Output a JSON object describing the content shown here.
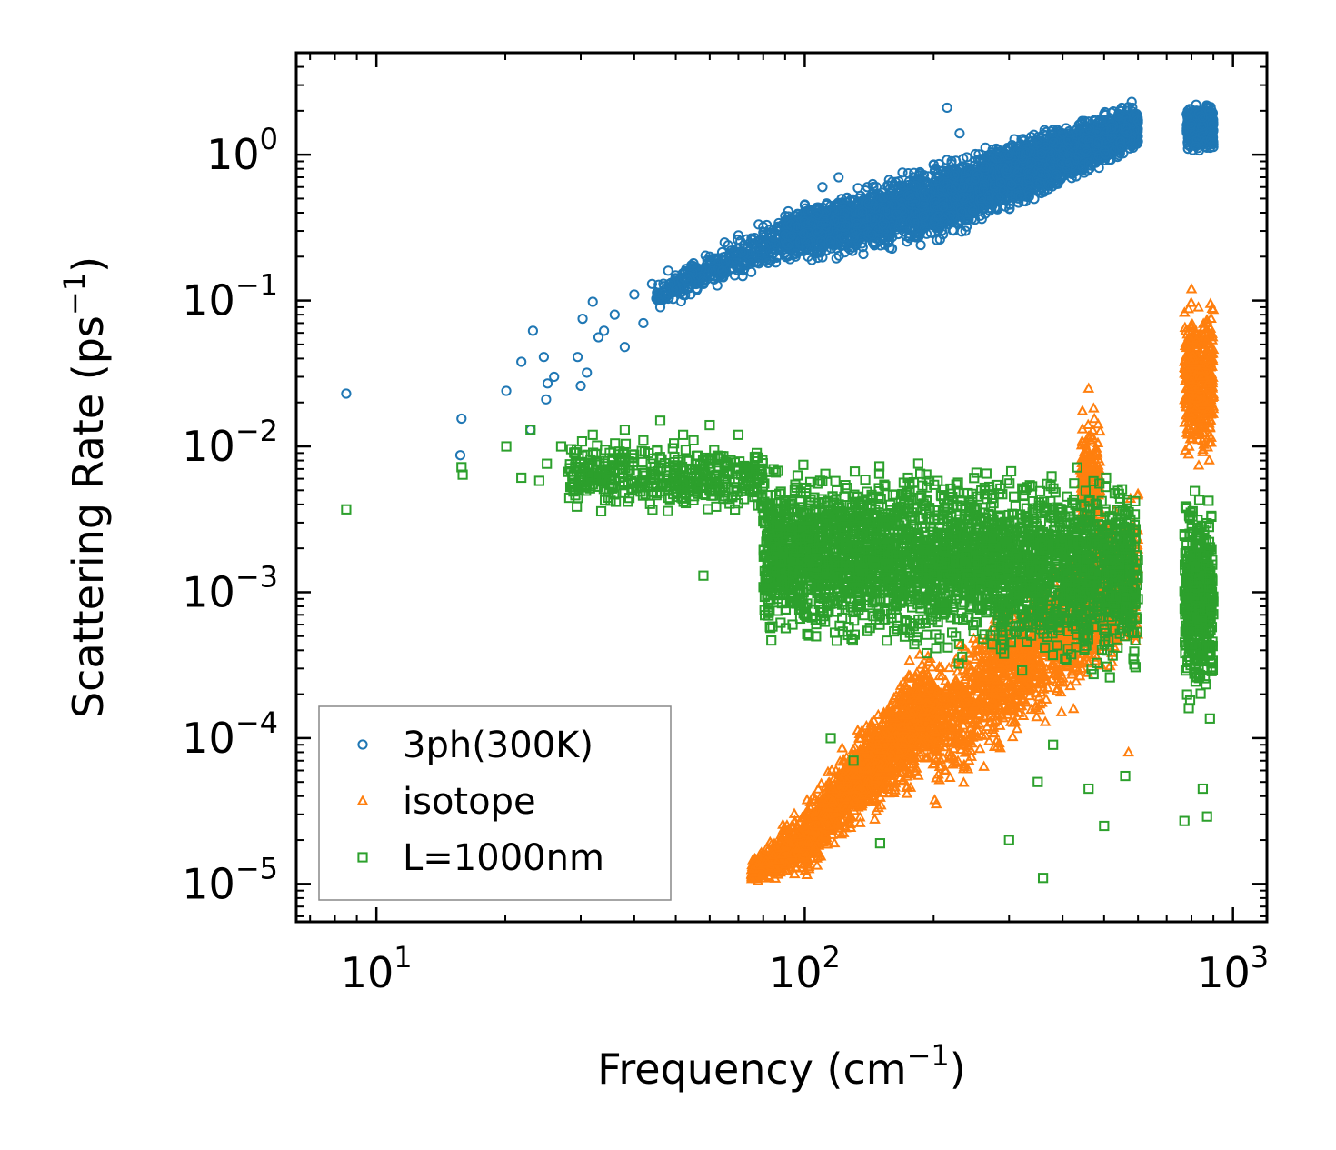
{
  "chart_data": {
    "type": "scatter",
    "xscale": "log",
    "yscale": "log",
    "xlabel": "Frequency (cm",
    "xlabel_unit_exp": "−1",
    "xlabel_close": ")",
    "ylabel": "Scattering Rate (ps",
    "ylabel_unit_exp": "−1",
    "ylabel_close": ")",
    "xlim": [
      6.5,
      1200
    ],
    "ylim": [
      5.5e-06,
      5.0
    ],
    "x_ticks": [
      {
        "value": 10,
        "base": "10",
        "exp": "1"
      },
      {
        "value": 100,
        "base": "10",
        "exp": "2"
      },
      {
        "value": 1000,
        "base": "10",
        "exp": "3"
      }
    ],
    "y_ticks": [
      {
        "value": 1e-05,
        "base": "10",
        "exp": "−5"
      },
      {
        "value": 0.0001,
        "base": "10",
        "exp": "−4"
      },
      {
        "value": 0.001,
        "base": "10",
        "exp": "−3"
      },
      {
        "value": 0.01,
        "base": "10",
        "exp": "−2"
      },
      {
        "value": 0.1,
        "base": "10",
        "exp": "−1"
      },
      {
        "value": 1,
        "base": "10",
        "exp": "0"
      }
    ],
    "legend_position": "lower-left",
    "series": [
      {
        "name": "3ph(300K)",
        "marker": "circle",
        "color": "#1f77b4",
        "points": [
          [
            8.5,
            0.023
          ],
          [
            15.8,
            0.0155
          ],
          [
            15.7,
            0.0087
          ],
          [
            20.1,
            0.024
          ],
          [
            21.8,
            0.038
          ],
          [
            22.9,
            0.013
          ],
          [
            23.2,
            0.062
          ],
          [
            24.6,
            0.041
          ],
          [
            24.9,
            0.021
          ],
          [
            25.1,
            0.027
          ],
          [
            26.0,
            0.03
          ],
          [
            29.5,
            0.041
          ],
          [
            30.0,
            0.026
          ],
          [
            30.3,
            0.075
          ],
          [
            31.0,
            0.032
          ],
          [
            32.0,
            0.098
          ],
          [
            33.0,
            0.056
          ],
          [
            34.0,
            0.062
          ],
          [
            36.0,
            0.08
          ],
          [
            38.0,
            0.048
          ],
          [
            40.0,
            0.11
          ],
          [
            42.0,
            0.07
          ],
          [
            44.0,
            0.13
          ],
          [
            46.0,
            0.09
          ],
          [
            48.0,
            0.16
          ],
          [
            50.0,
            0.12
          ],
          [
            55.0,
            0.18
          ],
          [
            60.0,
            0.2
          ],
          [
            65.0,
            0.25
          ],
          [
            70.0,
            0.28
          ],
          [
            80.0,
            0.32
          ],
          [
            90.0,
            0.38
          ],
          [
            100.0,
            0.45
          ],
          [
            110.0,
            0.6
          ],
          [
            120.0,
            0.7
          ],
          [
            140.0,
            0.6
          ],
          [
            160.0,
            0.65
          ],
          [
            180.0,
            0.75
          ],
          [
            200.0,
            0.85
          ],
          [
            215.0,
            2.1
          ],
          [
            230.0,
            1.4
          ],
          [
            250.0,
            0.9
          ],
          [
            280.0,
            1.1
          ],
          [
            300.0,
            1.0
          ],
          [
            350.0,
            1.2
          ],
          [
            400.0,
            1.4
          ],
          [
            450.0,
            1.7
          ],
          [
            500.0,
            1.9
          ],
          [
            550.0,
            2.1
          ],
          [
            580.0,
            2.3
          ],
          [
            780.0,
            1.9
          ],
          [
            820.0,
            2.2
          ],
          [
            850.0,
            1.8
          ],
          [
            880.0,
            2.0
          ]
        ],
        "bands": [
          {
            "xmin": 45,
            "xmax": 90,
            "ylow_start": 0.08,
            "ylow_end": 0.17,
            "yhigh_start": 0.14,
            "yhigh_end": 0.45,
            "count": 360
          },
          {
            "xmin": 90,
            "xmax": 200,
            "ylow_start": 0.17,
            "ylow_end": 0.22,
            "yhigh_start": 0.45,
            "yhigh_end": 0.95,
            "count": 1400
          },
          {
            "xmin": 200,
            "xmax": 600,
            "ylow_start": 0.22,
            "ylow_end": 1.0,
            "yhigh_start": 0.95,
            "yhigh_end": 2.4,
            "count": 2800
          },
          {
            "xmin": 780,
            "xmax": 900,
            "ylow_start": 1.0,
            "ylow_end": 1.0,
            "yhigh_start": 2.3,
            "yhigh_end": 2.3,
            "count": 500
          }
        ]
      },
      {
        "name": "isotope",
        "marker": "triangle",
        "color": "#ff7f0e",
        "points": [
          [
            460.0,
            0.025
          ],
          [
            570.0,
            8e-05
          ],
          [
            800.0,
            0.12
          ],
          [
            830.0,
            0.09
          ],
          [
            790.0,
            0.01
          ],
          [
            860.0,
            0.02
          ]
        ],
        "bands": [
          {
            "xmin": 75,
            "xmax": 110,
            "ylow_start": 1e-05,
            "ylow_end": 1e-05,
            "yhigh_start": 1.5e-05,
            "yhigh_end": 6e-05,
            "count": 500
          },
          {
            "xmin": 110,
            "xmax": 200,
            "ylow_start": 1.5e-05,
            "ylow_end": 5e-05,
            "yhigh_start": 6e-05,
            "yhigh_end": 0.0006,
            "count": 1400
          },
          {
            "xmin": 200,
            "xmax": 600,
            "ylow_start": 3e-05,
            "ylow_end": 0.0003,
            "yhigh_start": 0.0004,
            "yhigh_end": 0.006,
            "count": 1500
          },
          {
            "xmin": 440,
            "xmax": 490,
            "ylow_start": 0.002,
            "ylow_end": 0.002,
            "yhigh_start": 0.022,
            "yhigh_end": 0.022,
            "count": 160
          },
          {
            "xmin": 770,
            "xmax": 900,
            "ylow_start": 0.006,
            "ylow_end": 0.006,
            "yhigh_start": 0.12,
            "yhigh_end": 0.12,
            "count": 420
          }
        ]
      },
      {
        "name": "L=1000nm",
        "marker": "square",
        "color": "#2ca02c",
        "points": [
          [
            8.5,
            0.0037
          ],
          [
            15.8,
            0.0072
          ],
          [
            15.9,
            0.0064
          ],
          [
            20.1,
            0.01
          ],
          [
            21.8,
            0.0061
          ],
          [
            22.9,
            0.013
          ],
          [
            24.0,
            0.0058
          ],
          [
            25.0,
            0.0076
          ],
          [
            27.0,
            0.01
          ],
          [
            30.0,
            0.0078
          ],
          [
            32.0,
            0.012
          ],
          [
            35.0,
            0.007
          ],
          [
            38.0,
            0.013
          ],
          [
            42.0,
            0.011
          ],
          [
            46.0,
            0.015
          ],
          [
            50.0,
            0.006
          ],
          [
            52.0,
            0.012
          ],
          [
            55.0,
            0.011
          ],
          [
            58.0,
            0.0013
          ],
          [
            60.0,
            0.014
          ],
          [
            70.0,
            0.012
          ],
          [
            100.0,
            0.0007
          ],
          [
            115.0,
            0.0001
          ],
          [
            130.0,
            7e-05
          ],
          [
            150.0,
            1.9e-05
          ],
          [
            300.0,
            2e-05
          ],
          [
            350.0,
            5e-05
          ],
          [
            360.0,
            1.1e-05
          ],
          [
            380.0,
            9e-05
          ],
          [
            460.0,
            4.5e-05
          ],
          [
            500.0,
            2.5e-05
          ],
          [
            560.0,
            5.5e-05
          ],
          [
            770.0,
            2.7e-05
          ],
          [
            850.0,
            4.5e-05
          ],
          [
            870.0,
            2.9e-05
          ]
        ],
        "bands": [
          {
            "xmin": 28,
            "xmax": 80,
            "ylow_start": 0.0035,
            "ylow_end": 0.003,
            "yhigh_start": 0.012,
            "yhigh_end": 0.012,
            "count": 420
          },
          {
            "xmin": 80,
            "xmax": 600,
            "ylow_start": 0.0004,
            "ylow_end": 0.0002,
            "yhigh_start": 0.01,
            "yhigh_end": 0.008,
            "count": 3200
          },
          {
            "xmin": 770,
            "xmax": 900,
            "ylow_start": 0.00012,
            "ylow_end": 0.00012,
            "yhigh_start": 0.006,
            "yhigh_end": 0.006,
            "count": 450
          }
        ]
      }
    ]
  }
}
